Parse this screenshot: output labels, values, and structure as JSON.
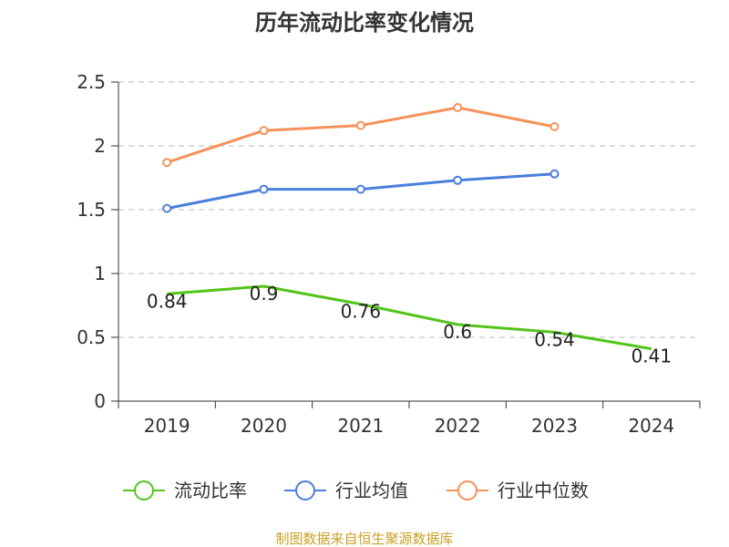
{
  "chart_data": {
    "type": "line",
    "title": "历年流动比率变化情况",
    "xlabel": "",
    "ylabel": "",
    "categories": [
      "2019",
      "2020",
      "2021",
      "2022",
      "2023",
      "2024"
    ],
    "ylim": [
      0,
      2.5
    ],
    "yticks": [
      0,
      0.5,
      1,
      1.5,
      2,
      2.5
    ],
    "ytick_labels": [
      "0",
      "0.5",
      "1",
      "1.5",
      "2",
      "2.5"
    ],
    "grid": true,
    "legend_position": "bottom",
    "series": [
      {
        "name": "流动比率",
        "color": "#52c41a",
        "values": [
          0.84,
          0.9,
          0.76,
          0.6,
          0.54,
          0.41
        ],
        "show_labels": true,
        "labels": [
          "0.84",
          "0.9",
          "0.76",
          "0.6",
          "0.54",
          "0.41"
        ],
        "markers": false
      },
      {
        "name": "行业均值",
        "color": "#4a7fdb",
        "values": [
          1.51,
          1.66,
          1.66,
          1.73,
          1.78,
          null
        ],
        "show_labels": false,
        "markers": true
      },
      {
        "name": "行业中位数",
        "color": "#f5925a",
        "values": [
          1.87,
          2.12,
          2.16,
          2.3,
          2.15,
          null
        ],
        "show_labels": false,
        "markers": true
      }
    ]
  },
  "source_text": "制图数据来自恒生聚源数据库",
  "colors": {
    "axis": "#333333",
    "grid": "#bbbbbb",
    "source": "#c9a227",
    "title": "#333333"
  }
}
